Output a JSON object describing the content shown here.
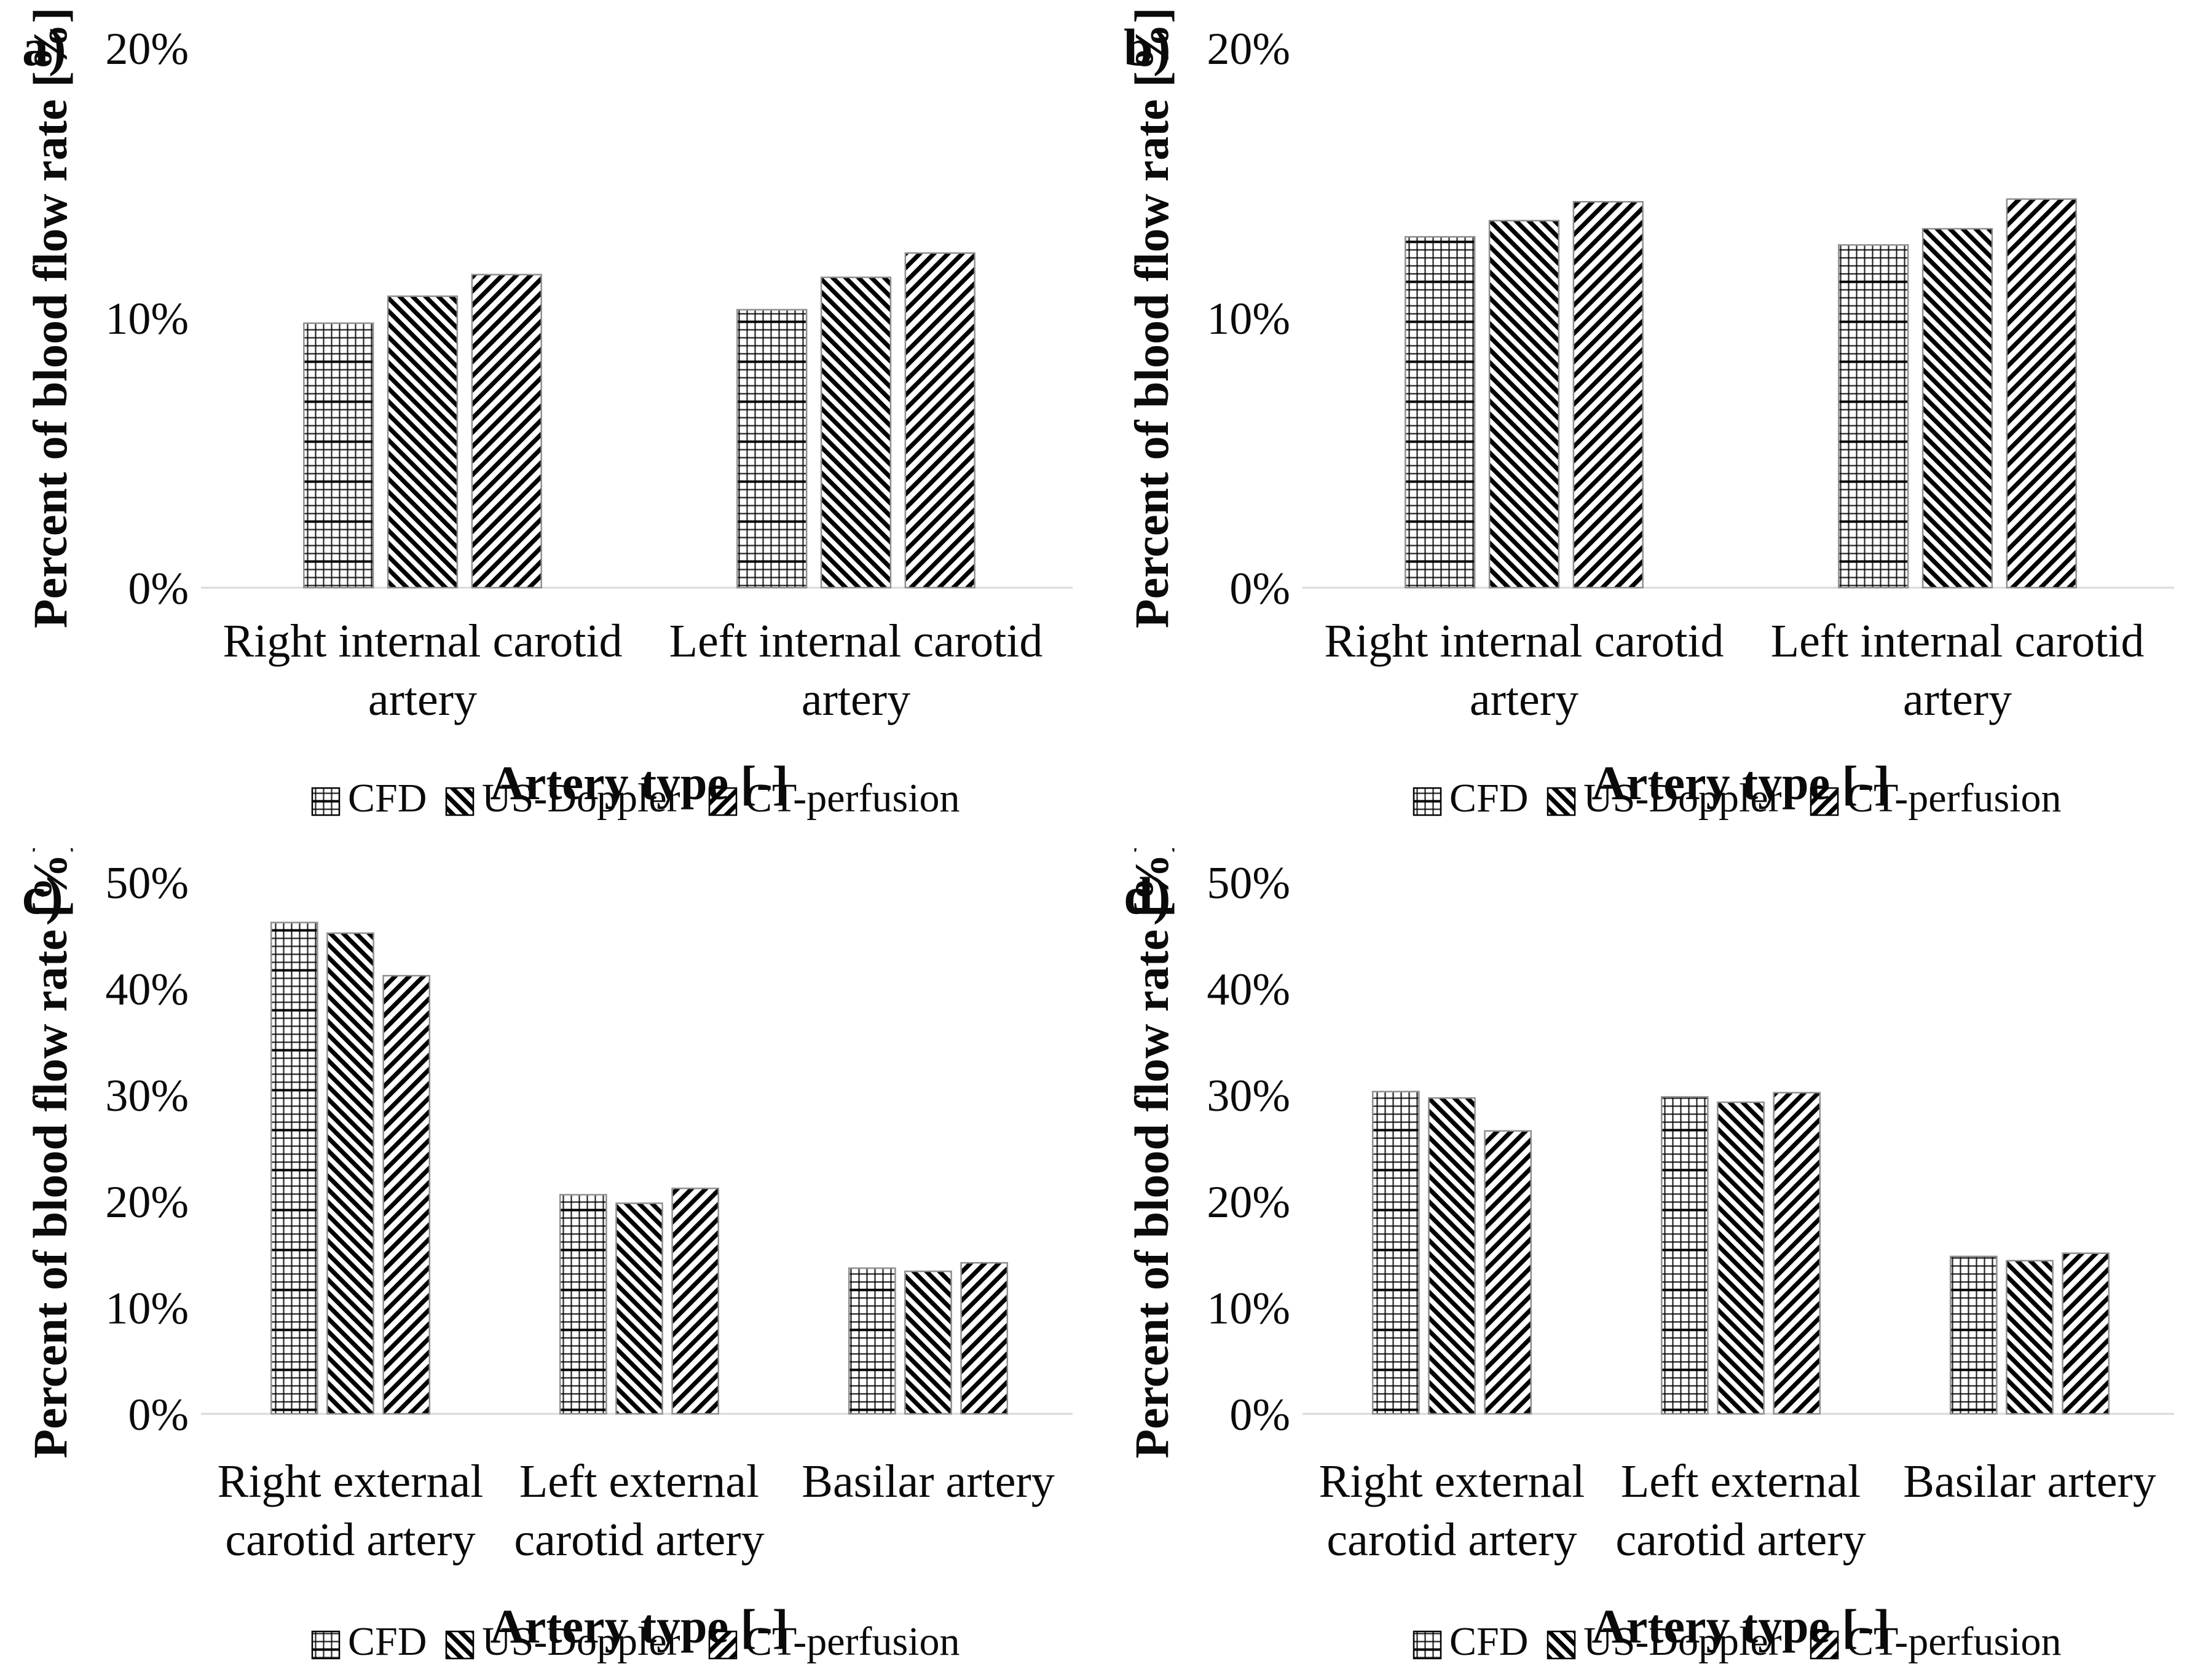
{
  "figure": {
    "background": "#ffffff",
    "description": "Four-panel bar chart figure comparing percent of blood flow rate by artery type for CFD, US-Doppler and CT-perfusion"
  },
  "legend": {
    "items": [
      {
        "label": "CFD",
        "pattern": "grid",
        "icon": "grid-pattern-swatch"
      },
      {
        "label": "US-Doppler",
        "pattern": "diag-backslash",
        "icon": "backslash-pattern-swatch"
      },
      {
        "label": "CT-perfusion",
        "pattern": "diag-slash",
        "icon": "slash-pattern-swatch"
      }
    ],
    "position": "bottom"
  },
  "colors": {
    "pattern_ink": "#000000",
    "axis_line": "#d9d9d9",
    "bar_outline": "#8f8f8f",
    "text": "#0a0a0a",
    "background": "#ffffff"
  },
  "chart_data": [
    {
      "id": "a",
      "panel_label": "a)",
      "type": "bar",
      "title": "",
      "ylabel": "Percent of blood flow rate [%]",
      "xlabel": "Artery type [-]",
      "ylim": [
        0,
        20
      ],
      "yticks": [
        0,
        10,
        20
      ],
      "ytick_labels": [
        "0%",
        "10%",
        "20%"
      ],
      "grid": false,
      "legend_position": "bottom",
      "categories": [
        "Right internal carotid artery",
        "Left internal carotid artery"
      ],
      "category_lines": [
        [
          "Right internal carotid",
          "artery"
        ],
        [
          "Left internal carotid",
          "artery"
        ]
      ],
      "series": [
        {
          "name": "CFD",
          "pattern": "grid",
          "values": [
            9.8,
            10.3
          ]
        },
        {
          "name": "US-Doppler",
          "pattern": "diag-backslash",
          "values": [
            10.8,
            11.5
          ]
        },
        {
          "name": "CT-perfusion",
          "pattern": "diag-slash",
          "values": [
            11.6,
            12.4
          ]
        }
      ]
    },
    {
      "id": "b",
      "panel_label": "b)",
      "type": "bar",
      "title": "",
      "ylabel": "Percent of blood flow rate [%]",
      "xlabel": "Artery type [-]",
      "ylim": [
        0,
        20
      ],
      "yticks": [
        0,
        10,
        20
      ],
      "ytick_labels": [
        "0%",
        "10%",
        "20%"
      ],
      "grid": false,
      "legend_position": "bottom",
      "categories": [
        "Right internal carotid artery",
        "Left internal carotid artery"
      ],
      "category_lines": [
        [
          "Right internal carotid",
          "artery"
        ],
        [
          "Left internal carotid",
          "artery"
        ]
      ],
      "series": [
        {
          "name": "CFD",
          "pattern": "grid",
          "values": [
            13.0,
            12.7
          ]
        },
        {
          "name": "US-Doppler",
          "pattern": "diag-backslash",
          "values": [
            13.6,
            13.3
          ]
        },
        {
          "name": "CT-perfusion",
          "pattern": "diag-slash",
          "values": [
            14.3,
            14.4
          ]
        }
      ]
    },
    {
      "id": "c",
      "panel_label": "c)",
      "type": "bar",
      "title": "",
      "ylabel": "Percent of blood flow rate [%]",
      "xlabel": "Artery type [-]",
      "ylim": [
        0,
        50
      ],
      "yticks": [
        0,
        10,
        20,
        30,
        40,
        50
      ],
      "ytick_labels": [
        "0%",
        "10%",
        "20%",
        "30%",
        "40%",
        "50%"
      ],
      "grid": false,
      "legend_position": "bottom",
      "categories": [
        "Right external carotid artery",
        "Left external carotid artery",
        "Basilar artery"
      ],
      "category_lines": [
        [
          "Right external",
          "carotid artery"
        ],
        [
          "Left external",
          "carotid artery"
        ],
        [
          "Basilar artery"
        ]
      ],
      "series": [
        {
          "name": "CFD",
          "pattern": "grid",
          "values": [
            46.2,
            20.6,
            13.7
          ]
        },
        {
          "name": "US-Doppler",
          "pattern": "diag-backslash",
          "values": [
            45.2,
            19.8,
            13.4
          ]
        },
        {
          "name": "CT-perfusion",
          "pattern": "diag-slash",
          "values": [
            41.2,
            21.2,
            14.2
          ]
        }
      ]
    },
    {
      "id": "d",
      "panel_label": "d)",
      "type": "bar",
      "title": "",
      "ylabel": "Percent of blood flow rate [%]",
      "xlabel": "Artery type [-]",
      "ylim": [
        0,
        50
      ],
      "yticks": [
        0,
        10,
        20,
        30,
        40,
        50
      ],
      "ytick_labels": [
        "0%",
        "10%",
        "20%",
        "30%",
        "40%",
        "50%"
      ],
      "grid": false,
      "legend_position": "bottom",
      "categories": [
        "Right external carotid artery",
        "Left external carotid artery",
        "Basilar artery"
      ],
      "category_lines": [
        [
          "Right external",
          "carotid artery"
        ],
        [
          "Left external",
          "carotid artery"
        ],
        [
          "Basilar artery"
        ]
      ],
      "series": [
        {
          "name": "CFD",
          "pattern": "grid",
          "values": [
            30.3,
            29.8,
            14.8
          ]
        },
        {
          "name": "US-Doppler",
          "pattern": "diag-backslash",
          "values": [
            29.7,
            29.3,
            14.4
          ]
        },
        {
          "name": "CT-perfusion",
          "pattern": "diag-slash",
          "values": [
            26.6,
            30.2,
            15.1
          ]
        }
      ]
    }
  ]
}
